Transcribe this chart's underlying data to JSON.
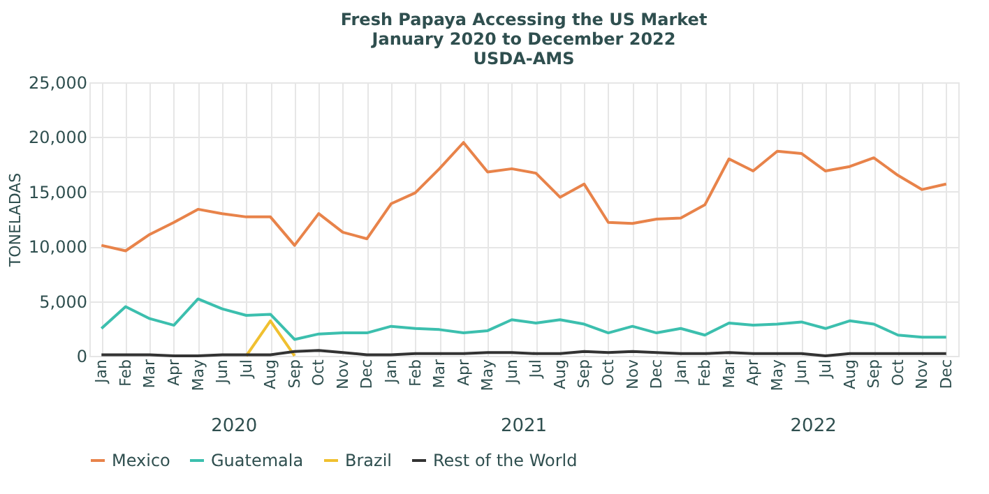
{
  "chart_data": {
    "type": "line",
    "title": "Fresh Papaya Accessing the US Market\nJanuary 2020 to December 2022\nUSDA-AMS",
    "ylabel": "TONELADAS",
    "categories": [
      "Jan",
      "Feb",
      "Mar",
      "Apr",
      "May",
      "Jun",
      "Jul",
      "Aug",
      "Sep",
      "Oct",
      "Nov",
      "Dec",
      "Jan",
      "Feb",
      "Mar",
      "Apr",
      "May",
      "Jun",
      "Jul",
      "Aug",
      "Sep",
      "Oct",
      "Nov",
      "Dec",
      "Jan",
      "Feb",
      "Mar",
      "Apr",
      "May",
      "Jun",
      "Jul",
      "Aug",
      "Sep",
      "Oct",
      "Nov",
      "Dec"
    ],
    "annotations": [
      "2020",
      "2021",
      "2022"
    ],
    "series": [
      {
        "name": "Mexico",
        "color": "#e8834a",
        "values": [
          10100,
          9600,
          11100,
          12200,
          13400,
          13000,
          12700,
          12700,
          10100,
          13000,
          11300,
          10700,
          13900,
          14900,
          17100,
          19500,
          16800,
          17100,
          16700,
          14500,
          15700,
          12200,
          12100,
          12500,
          12600,
          13800,
          18000,
          16900,
          18700,
          18500,
          16900,
          17300,
          18100,
          16500,
          15200,
          15700
        ]
      },
      {
        "name": "Guatemala",
        "color": "#3cbfae",
        "values": [
          2500,
          4500,
          3400,
          2800,
          5200,
          4300,
          3700,
          3800,
          1500,
          2000,
          2100,
          2100,
          2700,
          2500,
          2400,
          2100,
          2300,
          3300,
          3000,
          3300,
          2900,
          2100,
          2700,
          2100,
          2500,
          1900,
          3000,
          2800,
          2900,
          3100,
          2500,
          3200,
          2900,
          1900,
          1700,
          1700
        ]
      },
      {
        "name": "Brazil",
        "color": "#f0c030",
        "values": [
          null,
          null,
          null,
          null,
          null,
          null,
          0,
          3200,
          0,
          null,
          null,
          null,
          null,
          null,
          null,
          null,
          null,
          null,
          null,
          null,
          null,
          null,
          null,
          null,
          null,
          null,
          null,
          null,
          null,
          null,
          null,
          null,
          null,
          null,
          null,
          null
        ]
      },
      {
        "name": "Rest of the World",
        "color": "#333333",
        "values": [
          100,
          100,
          100,
          0,
          0,
          100,
          100,
          100,
          400,
          500,
          300,
          100,
          100,
          200,
          200,
          200,
          300,
          300,
          200,
          200,
          400,
          300,
          400,
          300,
          200,
          200,
          300,
          200,
          200,
          200,
          0,
          200,
          200,
          200,
          200,
          200
        ]
      }
    ],
    "ylim": [
      0,
      25000
    ],
    "yticks": [
      0,
      {
        "value": 5000,
        "label": "5,000"
      },
      {
        "value": 10000,
        "label": "10,000"
      },
      {
        "value": 15000,
        "label": "15,000"
      },
      {
        "value": 20000,
        "label": "20,000"
      },
      {
        "value": 25000,
        "label": "25,000"
      }
    ],
    "grid": true,
    "legend": "bottom",
    "marker": "none",
    "line_style": "solid"
  }
}
